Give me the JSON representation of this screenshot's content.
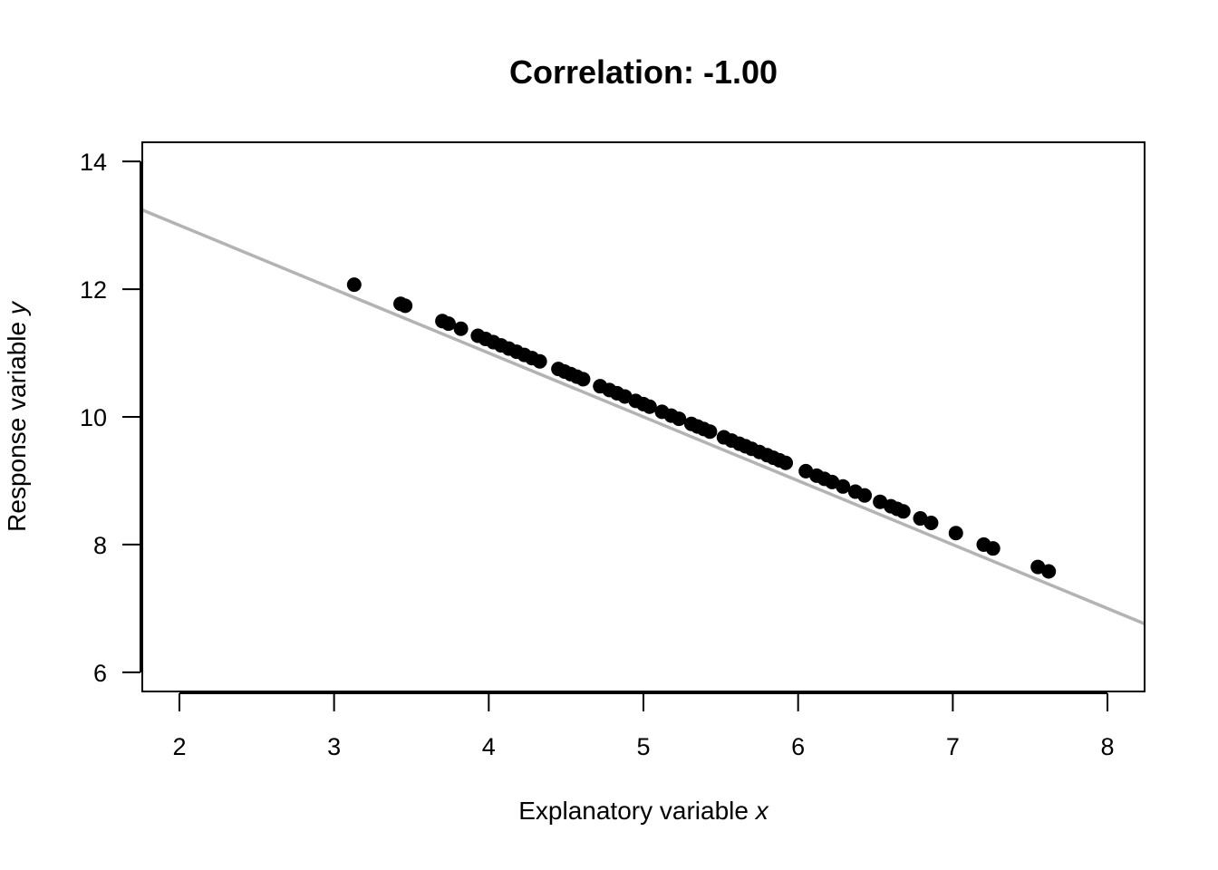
{
  "chart_data": {
    "type": "scatter",
    "title": "Correlation: -1.00",
    "xlabel_prefix": "Explanatory variable ",
    "xlabel_var": "x",
    "ylabel_prefix": "Response variable ",
    "ylabel_var": "y",
    "xlim": [
      1.76,
      8.24
    ],
    "ylim": [
      5.7,
      14.3
    ],
    "x_ticks": [
      2,
      3,
      4,
      5,
      6,
      7,
      8
    ],
    "x_tick_labels": [
      "2",
      "3",
      "4",
      "5",
      "6",
      "7",
      "8"
    ],
    "y_ticks": [
      6,
      8,
      10,
      12,
      14
    ],
    "y_tick_labels": [
      "6",
      "8",
      "10",
      "12",
      "14"
    ],
    "grid": false,
    "point_color": "#000000",
    "line_color": "#b3b3b3",
    "fit_line": {
      "intercept": 15.0,
      "slope": -1.0
    },
    "series": [
      {
        "x": [
          3.13,
          3.43,
          3.46,
          3.7,
          3.74,
          3.82,
          3.93,
          3.98,
          4.03,
          4.08,
          4.13,
          4.18,
          4.23,
          4.28,
          4.33,
          4.45,
          4.49,
          4.53,
          4.57,
          4.61,
          4.72,
          4.78,
          4.83,
          4.88,
          4.95,
          5.0,
          5.04,
          5.12,
          5.18,
          5.23,
          5.31,
          5.35,
          5.39,
          5.43,
          5.52,
          5.57,
          5.62,
          5.66,
          5.7,
          5.75,
          5.8,
          5.84,
          5.88,
          5.92,
          6.05,
          6.12,
          6.17,
          6.22,
          6.29,
          6.37,
          6.43,
          6.53,
          6.6,
          6.64,
          6.68,
          6.79,
          6.86,
          7.02,
          7.2,
          7.26,
          7.55,
          7.62
        ],
        "y": [
          12.07,
          11.77,
          11.74,
          11.5,
          11.46,
          11.38,
          11.27,
          11.22,
          11.17,
          11.12,
          11.07,
          11.02,
          10.97,
          10.92,
          10.87,
          10.75,
          10.71,
          10.67,
          10.63,
          10.59,
          10.48,
          10.42,
          10.37,
          10.32,
          10.25,
          10.2,
          10.16,
          10.08,
          10.02,
          9.97,
          9.89,
          9.85,
          9.81,
          9.77,
          9.68,
          9.63,
          9.58,
          9.54,
          9.5,
          9.45,
          9.4,
          9.36,
          9.32,
          9.28,
          9.15,
          9.08,
          9.03,
          8.98,
          8.91,
          8.83,
          8.77,
          8.67,
          8.6,
          8.56,
          8.52,
          8.41,
          8.34,
          8.18,
          8.0,
          7.94,
          7.65,
          7.58
        ]
      }
    ]
  }
}
